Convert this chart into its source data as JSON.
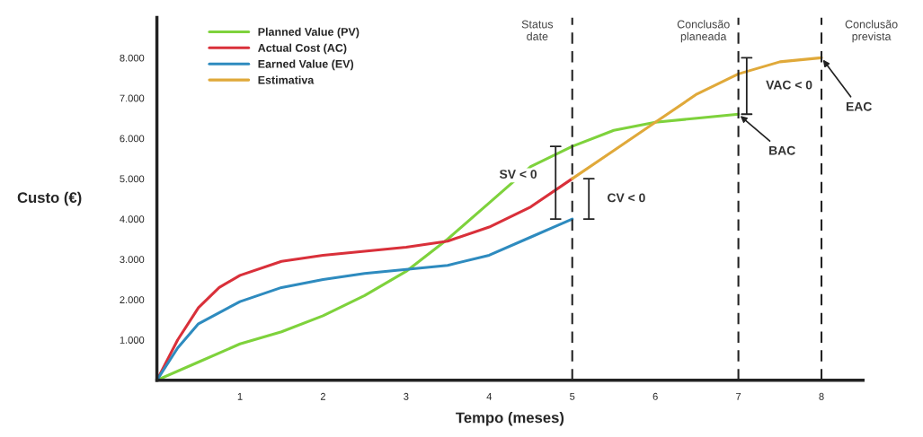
{
  "chart_data": {
    "type": "line",
    "xlabel": "Tempo (meses)",
    "ylabel": "Custo (€)",
    "xlim": [
      0,
      8.5
    ],
    "ylim": [
      0,
      9000
    ],
    "xticks": [
      1,
      2,
      3,
      4,
      5,
      6,
      7,
      8
    ],
    "yticks": [
      {
        "value": 1000,
        "label": "1.000"
      },
      {
        "value": 2000,
        "label": "2.000"
      },
      {
        "value": 3000,
        "label": "3.000"
      },
      {
        "value": 4000,
        "label": "4.000"
      },
      {
        "value": 5000,
        "label": "5.000"
      },
      {
        "value": 6000,
        "label": "6.000"
      },
      {
        "value": 7000,
        "label": "7.000"
      },
      {
        "value": 8000,
        "label": "8.000"
      }
    ],
    "grid": false,
    "legend": "top left",
    "marker": "none",
    "line_style": "solid",
    "series": [
      {
        "name": "Planned Value (PV)",
        "color": "#7ed23c",
        "x": [
          0,
          0.5,
          1,
          1.5,
          2,
          2.5,
          3,
          3.5,
          4,
          4.5,
          5,
          5.5,
          6,
          6.5,
          7
        ],
        "values": [
          0,
          450,
          900,
          1200,
          1600,
          2100,
          2700,
          3500,
          4400,
          5300,
          5800,
          6200,
          6400,
          6500,
          6600
        ]
      },
      {
        "name": "Actual Cost (AC)",
        "color": "#d9303a",
        "x": [
          0,
          0.25,
          0.5,
          0.75,
          1,
          1.5,
          2,
          2.5,
          3,
          3.5,
          4,
          4.5,
          5
        ],
        "values": [
          0,
          1000,
          1800,
          2300,
          2600,
          2950,
          3100,
          3200,
          3300,
          3450,
          3800,
          4300,
          5000
        ]
      },
      {
        "name": "Earned Value (EV)",
        "color": "#2e8bbf",
        "x": [
          0,
          0.25,
          0.5,
          1,
          1.5,
          2,
          2.5,
          3,
          3.5,
          4,
          4.5,
          5
        ],
        "values": [
          0,
          800,
          1400,
          1950,
          2300,
          2500,
          2650,
          2750,
          2850,
          3100,
          3550,
          4000
        ]
      },
      {
        "name": "Estimativa",
        "color": "#e0a93a",
        "x": [
          5,
          5.5,
          6,
          6.5,
          7,
          7.5,
          8
        ],
        "values": [
          5000,
          5700,
          6400,
          7100,
          7600,
          7900,
          8000
        ]
      }
    ],
    "ref_lines": [
      {
        "axis": "x",
        "value": 5,
        "label": "Status\ndate",
        "color": "#222222",
        "line_style": "dashed"
      },
      {
        "axis": "x",
        "value": 7,
        "label": "Conclusão\nplaneada",
        "color": "#222222",
        "line_style": "dashed"
      },
      {
        "axis": "x",
        "value": 8,
        "label": "Conclusão\nprevista",
        "color": "#222222",
        "line_style": "dashed"
      }
    ],
    "annotations": [
      "SV < 0",
      "CV < 0",
      "VAC < 0",
      {
        "text": "BAC",
        "x": 7,
        "y": 6600
      },
      {
        "text": "EAC",
        "x": 8,
        "y": 8000
      }
    ]
  }
}
